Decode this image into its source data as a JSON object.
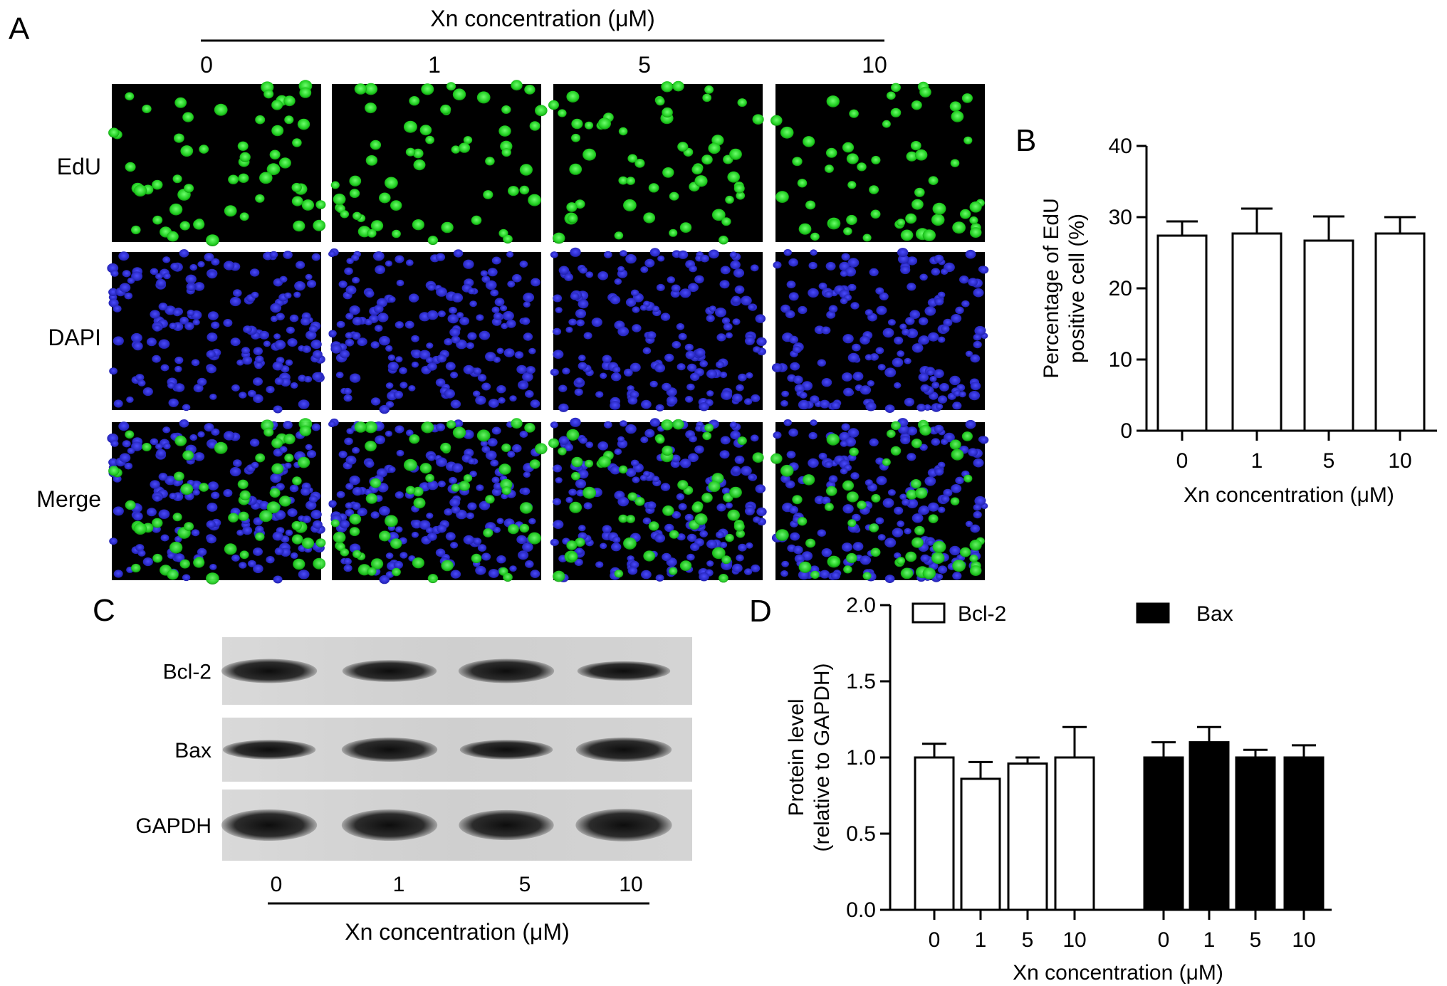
{
  "panel_letters": {
    "a": "A",
    "b": "B",
    "c": "C",
    "d": "D"
  },
  "panel_a": {
    "header": "Xn concentration (μM)",
    "columns": [
      "0",
      "1",
      "5",
      "10"
    ],
    "rows": [
      "EdU",
      "DAPI",
      "Merge"
    ],
    "colors": {
      "edu": "#19c019",
      "dapi": "#2a2ad0",
      "background": "#000000"
    }
  },
  "panel_c": {
    "rows": [
      "Bcl-2",
      "Bax",
      "GAPDH"
    ],
    "lanes": [
      "0",
      "1",
      "5",
      "10"
    ],
    "xlabel": "Xn concentration (μM)"
  },
  "chart_data": [
    {
      "type": "bar",
      "panel": "B",
      "categories": [
        "0",
        "1",
        "5",
        "10"
      ],
      "series": [
        {
          "values": [
            27.4,
            27.7,
            26.7,
            27.7
          ],
          "errors": [
            2.0,
            3.5,
            3.4,
            2.3
          ]
        }
      ],
      "xlabel": "Xn concentration (μM)",
      "ylabel_lines": [
        "Percentage of EdU",
        "positive cell (%)"
      ],
      "ylim": [
        0,
        40
      ],
      "yticks": [
        "0",
        "10",
        "20",
        "30",
        "40"
      ],
      "bar_fill": "#ffffff"
    },
    {
      "type": "bar",
      "panel": "D",
      "categories": [
        "0",
        "1",
        "5",
        "10"
      ],
      "series": [
        {
          "name": "Bcl-2",
          "values": [
            1.0,
            0.86,
            0.96,
            1.0
          ],
          "errors": [
            0.09,
            0.11,
            0.04,
            0.2
          ],
          "color": "#ffffff"
        },
        {
          "name": "Bax",
          "values": [
            1.0,
            1.1,
            1.0,
            1.0
          ],
          "errors": [
            0.1,
            0.1,
            0.05,
            0.08
          ],
          "color": "#000000"
        }
      ],
      "xlabel": "Xn concentration (μM)",
      "ylabel_lines": [
        "Protein level",
        "(relative to GAPDH)"
      ],
      "ylim": [
        0,
        2.0
      ],
      "yticks": [
        "0.0",
        "0.5",
        "1.0",
        "1.5",
        "2.0"
      ],
      "legend_position": "top"
    }
  ]
}
